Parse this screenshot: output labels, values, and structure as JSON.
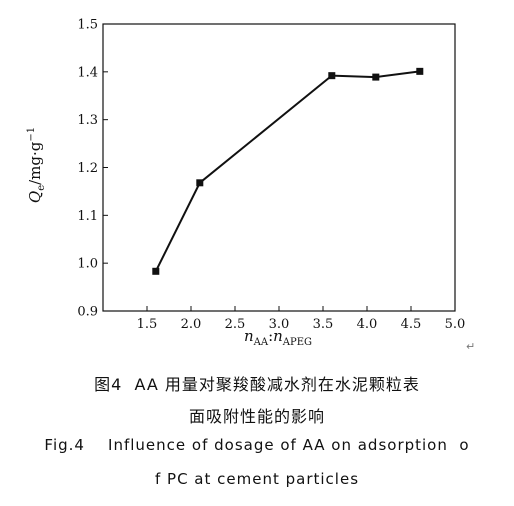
{
  "chart_data": {
    "type": "line",
    "x": [
      1.6,
      2.1,
      3.6,
      4.1,
      4.6
    ],
    "y": [
      0.983,
      1.168,
      1.392,
      1.389,
      1.401
    ],
    "xlim": [
      1.0,
      5.0
    ],
    "ylim": [
      0.9,
      1.5
    ],
    "xticks": [
      "1.5",
      "2.0",
      "2.5",
      "3.0",
      "3.5",
      "4.0",
      "4.5",
      "5.0"
    ],
    "yticks": [
      "0.9",
      "1.0",
      "1.1",
      "1.2",
      "1.3",
      "1.4",
      "1.5"
    ],
    "ylabel": "Q_e/mg·g⁻¹",
    "xlabel": "n_AA : n_APEG",
    "grid": false,
    "marker": "square"
  },
  "captions": {
    "cn_line1": "图4  AA 用量对聚羧酸减水剂在水泥颗粒表",
    "cn_line2": "面吸附性能的影响",
    "en_line1": "Fig.4    Influence of dosage of AA on adsorption  o",
    "en_line2": "f PC at cement particles"
  },
  "para_mark": "↵"
}
